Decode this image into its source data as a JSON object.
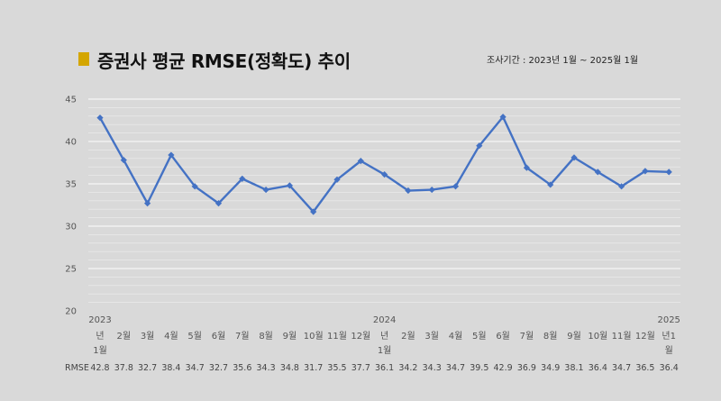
{
  "title": "증권사 평균 RMSE(정확도) 추이",
  "period": "조사기간 : 2023년 1월 ~ 2025월 1월",
  "colors": {
    "line": "#4472c4",
    "marker": "#d4a600",
    "background": "#d9d9d9",
    "grid": "#ffffff"
  },
  "chart_data": {
    "type": "line",
    "title": "증권사 평균 RMSE(정확도) 추이",
    "ylim": [
      20,
      45
    ],
    "yticks": [
      "20",
      "25",
      "30",
      "35",
      "40",
      "45"
    ],
    "grid": true,
    "categories": [
      [
        "2023",
        "년",
        "1월"
      ],
      [
        "",
        "2월"
      ],
      [
        "",
        "3월"
      ],
      [
        "",
        "4월"
      ],
      [
        "",
        "5월"
      ],
      [
        "",
        "6월"
      ],
      [
        "",
        "7월"
      ],
      [
        "",
        "8월"
      ],
      [
        "",
        "9월"
      ],
      [
        "",
        "10월"
      ],
      [
        "",
        "11월"
      ],
      [
        "",
        "12월"
      ],
      [
        "2024",
        "년",
        "1월"
      ],
      [
        "",
        "2월"
      ],
      [
        "",
        "3월"
      ],
      [
        "",
        "4월"
      ],
      [
        "",
        "5월"
      ],
      [
        "",
        "6월"
      ],
      [
        "",
        "7월"
      ],
      [
        "",
        "8월"
      ],
      [
        "",
        "9월"
      ],
      [
        "",
        "10월"
      ],
      [
        "",
        "11월"
      ],
      [
        "",
        "12월"
      ],
      [
        "2025",
        "년1",
        "월"
      ]
    ],
    "series": [
      {
        "name": "RMSE",
        "values": [
          42.8,
          37.8,
          32.7,
          38.4,
          34.7,
          32.7,
          35.6,
          34.3,
          34.8,
          31.7,
          35.5,
          37.7,
          36.1,
          34.2,
          34.3,
          34.7,
          39.5,
          42.9,
          36.9,
          34.9,
          38.1,
          36.4,
          34.7,
          36.5,
          36.4
        ],
        "labels": [
          "42.8",
          "37.8",
          "32.7",
          "38.4",
          "34.7",
          "32.7",
          "35.6",
          "34.3",
          "34.8",
          "31.7",
          "35.5",
          "37.7",
          "36.1",
          "34.2",
          "34.3",
          "34.7",
          "39.5",
          "42.9",
          "36.9",
          "34.9",
          "38.1",
          "36.4",
          "34.7",
          "36.5",
          "36.4"
        ]
      }
    ],
    "table_row_label": "RMSE"
  }
}
